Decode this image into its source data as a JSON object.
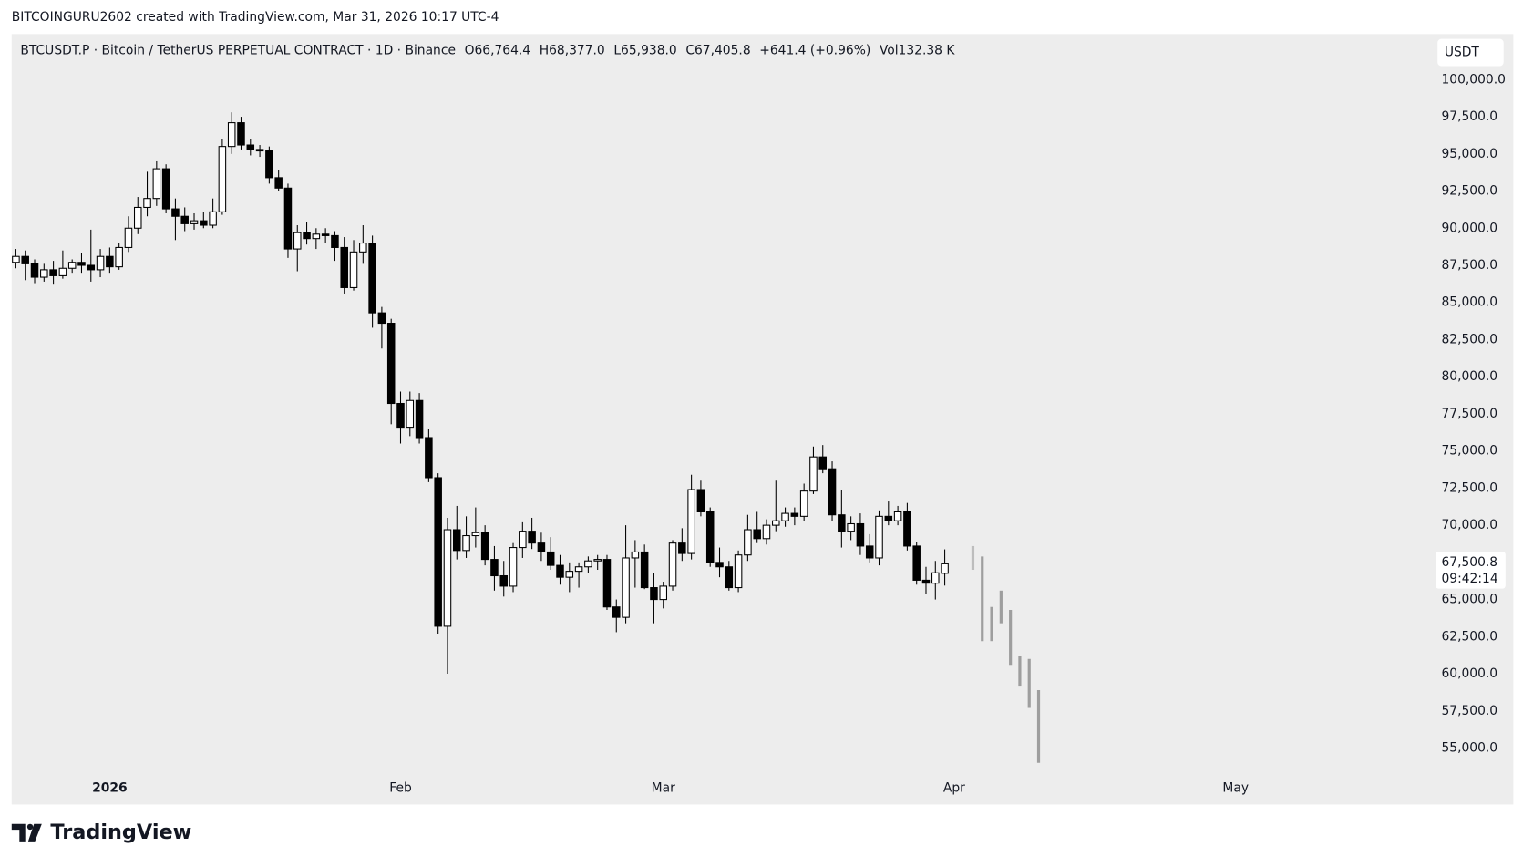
{
  "attribution": "BITCOINGURU2602 created with TradingView.com, Mar 31, 2026 10:17 UTC-4",
  "footer": {
    "brand": "TradingView"
  },
  "chart_data": {
    "type": "candlestick",
    "title": "BTCUSDT.P · Bitcoin / TetherUS PERPETUAL CONTRACT · 1D · Binance",
    "legend_values": [
      "O66,764.4",
      "H68,377.0",
      "L65,938.0",
      "C67,405.8",
      "+641.4 (+0.96%)",
      "Vol132.38 K"
    ],
    "currency": "USDT",
    "up_color": "#ffffff",
    "down_color": "#000000",
    "border_color": "#000000",
    "open": [
      87700,
      88100,
      87600,
      86700,
      87200,
      86800,
      87300,
      87700,
      87500,
      87200,
      88100,
      87400,
      88700,
      90000,
      91400,
      92000,
      94000,
      91300,
      90800,
      90300,
      90500,
      90200,
      91100,
      95500,
      97100,
      95600,
      95300,
      95200,
      93400,
      92700,
      88600,
      89700,
      89300,
      89600,
      89500,
      88700,
      86000,
      88400,
      89000,
      84300,
      83600,
      78200,
      76600,
      78400,
      75900,
      73200,
      63200,
      69700,
      68300,
      69300,
      69500,
      67700,
      66600,
      65900,
      68500,
      69600,
      68800,
      68200,
      67300,
      66500,
      66900,
      67200,
      67600,
      67700,
      64500,
      63800,
      67800,
      68200,
      65800,
      65000,
      65900,
      68800,
      68100,
      72400,
      70900,
      67500,
      67200,
      65800,
      68000,
      69700,
      69100,
      70000,
      70300,
      70800,
      70600,
      72300,
      74600,
      73800,
      70700,
      69600,
      70100,
      68600,
      67800,
      70600,
      70300,
      70900,
      68600,
      66300,
      66100,
      66764.4
    ],
    "high": [
      88600,
      88500,
      87900,
      87600,
      87800,
      88500,
      87900,
      88300,
      89900,
      88600,
      88700,
      89000,
      90800,
      92100,
      93800,
      94500,
      94300,
      92000,
      91400,
      91000,
      91100,
      92000,
      96000,
      97800,
      97500,
      96000,
      95600,
      95500,
      93900,
      93000,
      90200,
      90400,
      90000,
      90000,
      89800,
      89400,
      89200,
      90200,
      89500,
      84700,
      83900,
      79000,
      79000,
      78900,
      76500,
      73500,
      70500,
      71300,
      70600,
      71200,
      70000,
      68600,
      67600,
      68800,
      70200,
      70500,
      69500,
      69200,
      68000,
      67500,
      67500,
      67900,
      68000,
      68000,
      65000,
      70000,
      69000,
      68700,
      66800,
      66200,
      69000,
      69800,
      73400,
      73000,
      71200,
      68500,
      67600,
      68300,
      70700,
      70900,
      70400,
      73000,
      71200,
      71200,
      72800,
      75300,
      75400,
      74300,
      72400,
      70600,
      70800,
      69400,
      71000,
      71600,
      71300,
      71500,
      68900,
      67200,
      67600,
      68377.0
    ],
    "low": [
      87300,
      86500,
      86300,
      86400,
      86200,
      86600,
      87000,
      87000,
      86400,
      86700,
      87000,
      87200,
      88400,
      89600,
      90800,
      91500,
      91000,
      89200,
      89800,
      89900,
      90000,
      90000,
      90900,
      95000,
      95300,
      94900,
      94800,
      93000,
      92500,
      88000,
      87100,
      88900,
      88600,
      89000,
      87800,
      85600,
      85800,
      87600,
      83300,
      81900,
      76800,
      75500,
      76000,
      75500,
      72900,
      62700,
      60000,
      67700,
      67800,
      68500,
      67300,
      65600,
      65200,
      65500,
      67800,
      68400,
      67600,
      67000,
      66000,
      65500,
      65800,
      66800,
      67000,
      64300,
      62800,
      63400,
      65800,
      65700,
      63400,
      64400,
      65600,
      67600,
      67700,
      70600,
      67200,
      66500,
      65600,
      65500,
      67600,
      68800,
      68700,
      69600,
      69900,
      70000,
      70300,
      72100,
      73500,
      70300,
      68500,
      69000,
      68000,
      67500,
      67300,
      70000,
      70000,
      68300,
      66000,
      65400,
      65000,
      65938.0
    ],
    "close": [
      88100,
      87600,
      86700,
      87200,
      86800,
      87300,
      87700,
      87500,
      87200,
      88100,
      87400,
      88700,
      90000,
      91400,
      92000,
      94000,
      91300,
      90800,
      90300,
      90500,
      90200,
      91100,
      95500,
      97100,
      95600,
      95300,
      95200,
      93400,
      92700,
      88600,
      89700,
      89300,
      89600,
      89500,
      88700,
      86000,
      88400,
      89000,
      84300,
      83600,
      78200,
      76600,
      78400,
      75900,
      73200,
      63200,
      69700,
      68300,
      69300,
      69500,
      67700,
      66600,
      65900,
      68500,
      69600,
      68800,
      68200,
      67300,
      66500,
      66900,
      67200,
      67600,
      67700,
      64500,
      63800,
      67800,
      68200,
      65800,
      65000,
      65900,
      68800,
      68100,
      72400,
      70900,
      67500,
      67200,
      65800,
      68000,
      69700,
      69100,
      70000,
      70300,
      70800,
      70600,
      72300,
      74600,
      73800,
      70700,
      69600,
      70100,
      68600,
      67800,
      70600,
      70300,
      70900,
      68600,
      66300,
      66100,
      66800,
      67405.8
    ],
    "projection": {
      "x": [
        102,
        103,
        104,
        105,
        106,
        107,
        108,
        109
      ],
      "high": [
        68600,
        67900,
        64500,
        65600,
        64300,
        61200,
        61000,
        58900
      ],
      "low": [
        67000,
        62200,
        62200,
        63400,
        60600,
        59200,
        57700,
        54000
      ],
      "color": "#9e9e9e"
    },
    "last_price": {
      "value": 67500.8,
      "label": "67,500.8"
    },
    "countdown": "09:42:14",
    "xlim": [
      -0.45,
      151
    ],
    "xticks": [
      {
        "value": 10,
        "label": "2026"
      },
      {
        "value": 41,
        "label": "Feb"
      },
      {
        "value": 69,
        "label": "Mar"
      },
      {
        "value": 100,
        "label": "Apr"
      },
      {
        "value": 130,
        "label": "May"
      }
    ],
    "ylim": [
      51200,
      103070
    ],
    "yticks": [
      {
        "value": 55000,
        "label": "55,000.0"
      },
      {
        "value": 57500,
        "label": "57,500.0"
      },
      {
        "value": 60000,
        "label": "60,000.0"
      },
      {
        "value": 62500,
        "label": "62,500.0"
      },
      {
        "value": 65000,
        "label": "65,000.0"
      },
      {
        "value": 70000,
        "label": "70,000.0"
      },
      {
        "value": 72500,
        "label": "72,500.0"
      },
      {
        "value": 75000,
        "label": "75,000.0"
      },
      {
        "value": 77500,
        "label": "77,500.0"
      },
      {
        "value": 80000,
        "label": "80,000.0"
      },
      {
        "value": 82500,
        "label": "82,500.0"
      },
      {
        "value": 85000,
        "label": "85,000.0"
      },
      {
        "value": 87500,
        "label": "87,500.0"
      },
      {
        "value": 90000,
        "label": "90,000.0"
      },
      {
        "value": 92500,
        "label": "92,500.0"
      },
      {
        "value": 95000,
        "label": "95,000.0"
      },
      {
        "value": 97500,
        "label": "97,500.0"
      },
      {
        "value": 100000,
        "label": "100,000.0"
      }
    ],
    "grid": false
  }
}
